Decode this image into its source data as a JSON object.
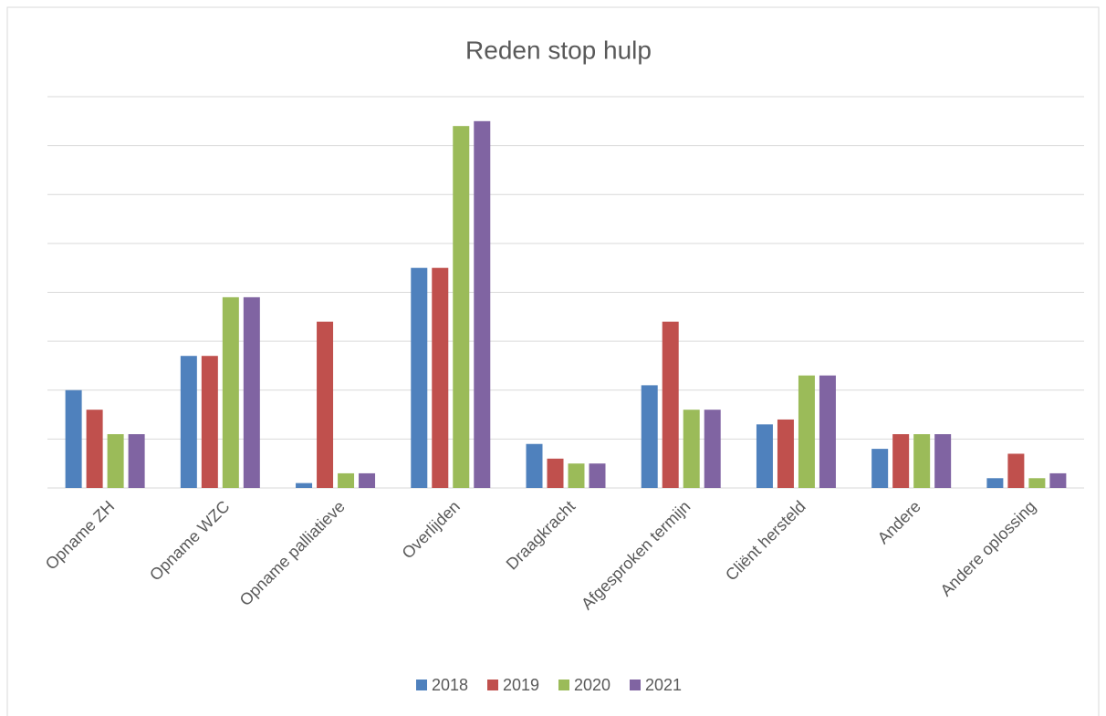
{
  "chart_data": {
    "type": "bar",
    "title": "Reden stop hulp",
    "categories": [
      "Opname ZH",
      "Opname WZC",
      "Opname palliatieve",
      "Overlijden",
      "Draagkracht",
      "Afgesproken termijn",
      "Cliënt hersteld",
      "Andere",
      "Andere oplossing"
    ],
    "series": [
      {
        "name": "2018",
        "color": "#4f81bd",
        "values": [
          2.0,
          2.7,
          0.1,
          4.5,
          0.9,
          2.1,
          1.3,
          0.8,
          0.2
        ]
      },
      {
        "name": "2019",
        "color": "#c0504d",
        "values": [
          1.6,
          2.7,
          3.4,
          4.5,
          0.6,
          3.4,
          1.4,
          1.1,
          0.7
        ]
      },
      {
        "name": "2020",
        "color": "#9bbb59",
        "values": [
          1.1,
          3.9,
          0.3,
          7.4,
          0.5,
          1.6,
          2.3,
          1.1,
          0.2
        ]
      },
      {
        "name": "2021",
        "color": "#8064a2",
        "values": [
          1.1,
          3.9,
          0.3,
          7.5,
          0.5,
          1.6,
          2.3,
          1.1,
          0.3
        ]
      }
    ],
    "ylim": [
      0,
      8
    ],
    "yticks": [
      0,
      1,
      2,
      3,
      4,
      5,
      6,
      7,
      8
    ],
    "grid": true,
    "legend": "bottom"
  }
}
